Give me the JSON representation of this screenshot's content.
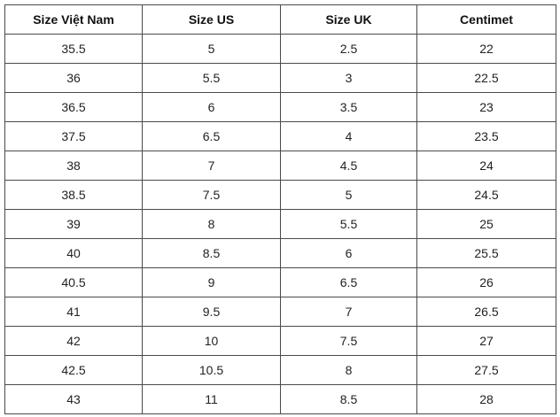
{
  "table": {
    "header": [
      "Size Việt Nam",
      "Size US",
      "Size UK",
      "Centimet"
    ],
    "rows": [
      [
        "35.5",
        "5",
        "2.5",
        "22"
      ],
      [
        "36",
        "5.5",
        "3",
        "22.5"
      ],
      [
        "36.5",
        "6",
        "3.5",
        "23"
      ],
      [
        "37.5",
        "6.5",
        "4",
        "23.5"
      ],
      [
        "38",
        "7",
        "4.5",
        "24"
      ],
      [
        "38.5",
        "7.5",
        "5",
        "24.5"
      ],
      [
        "39",
        "8",
        "5.5",
        "25"
      ],
      [
        "40",
        "8.5",
        "6",
        "25.5"
      ],
      [
        "40.5",
        "9",
        "6.5",
        "26"
      ],
      [
        "41",
        "9.5",
        "7",
        "26.5"
      ],
      [
        "42",
        "10",
        "7.5",
        "27"
      ],
      [
        "42.5",
        "10.5",
        "8",
        "27.5"
      ],
      [
        "43",
        "11",
        "8.5",
        "28"
      ]
    ]
  }
}
